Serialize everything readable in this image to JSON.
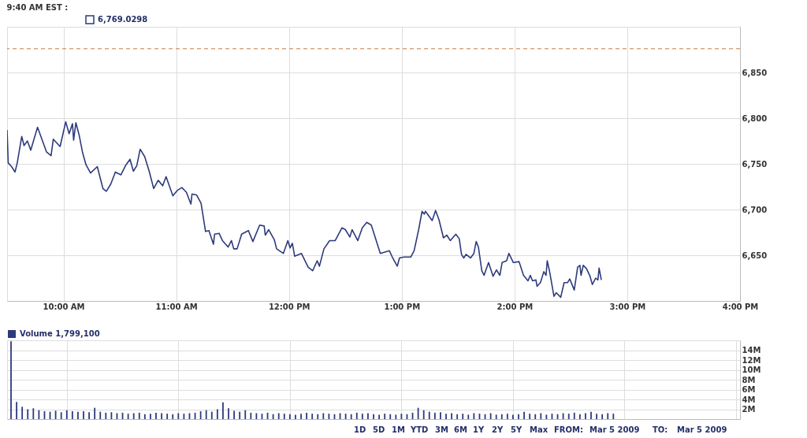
{
  "chart_data": [
    {
      "type": "line",
      "title": "9:40 AM EST :",
      "legend": "top left",
      "grid": true,
      "line_style": "solid",
      "xlim": [
        9.5,
        16
      ],
      "ylim": [
        6600,
        6900
      ],
      "xticks": [
        {
          "value": 10,
          "label": "10:00 AM"
        },
        {
          "value": 11,
          "label": "11:00 AM"
        },
        {
          "value": 12,
          "label": "12:00 PM"
        },
        {
          "value": 13,
          "label": "1:00 PM"
        },
        {
          "value": 14,
          "label": "2:00 PM"
        },
        {
          "value": 15,
          "label": "3:00 PM"
        },
        {
          "value": 16,
          "label": "4:00 PM"
        }
      ],
      "yticks": [
        {
          "value": 6650,
          "label": "6,650"
        },
        {
          "value": 6700,
          "label": "6,700"
        },
        {
          "value": 6750,
          "label": "6,750"
        },
        {
          "value": 6800,
          "label": "6,800"
        },
        {
          "value": 6850,
          "label": "6,850"
        }
      ],
      "ref_lines": [
        {
          "axis": "y",
          "value": 6876,
          "color": "#c8773e",
          "line_style": "dashed"
        }
      ],
      "series": [
        {
          "name": "6,769.0298",
          "color": "#2d3a7c",
          "x": [
            9.5,
            9.51,
            9.54,
            9.57,
            9.59,
            9.63,
            9.65,
            9.68,
            9.71,
            9.77,
            9.85,
            9.89,
            9.91,
            9.97,
            10.02,
            10.05,
            10.08,
            10.09,
            10.11,
            10.14,
            10.17,
            10.2,
            10.24,
            10.3,
            10.35,
            10.38,
            10.42,
            10.46,
            10.51,
            10.55,
            10.59,
            10.62,
            10.65,
            10.68,
            10.72,
            10.76,
            10.8,
            10.84,
            10.88,
            10.91,
            10.97,
            11.01,
            11.05,
            11.09,
            11.13,
            11.14,
            11.18,
            11.22,
            11.26,
            11.29,
            11.33,
            11.34,
            11.38,
            11.41,
            11.46,
            11.49,
            11.51,
            11.54,
            11.58,
            11.64,
            11.68,
            11.74,
            11.78,
            11.79,
            11.82,
            11.87,
            11.89,
            11.95,
            11.99,
            12.01,
            12.03,
            12.05,
            12.11,
            12.17,
            12.21,
            12.25,
            12.27,
            12.31,
            12.36,
            12.41,
            12.47,
            12.5,
            12.54,
            12.56,
            12.61,
            12.65,
            12.69,
            12.73,
            12.81,
            12.89,
            12.92,
            12.96,
            12.98,
            13.02,
            13.08,
            13.11,
            13.15,
            13.18,
            13.2,
            13.21,
            13.27,
            13.3,
            13.33,
            13.37,
            13.4,
            13.43,
            13.48,
            13.51,
            13.53,
            13.55,
            13.57,
            13.61,
            13.64,
            13.66,
            13.68,
            13.71,
            13.73,
            13.77,
            13.81,
            13.84,
            13.87,
            13.89,
            13.93,
            13.95,
            13.99,
            14.04,
            14.08,
            14.12,
            14.14,
            14.16,
            14.19,
            14.2,
            14.23,
            14.26,
            14.28,
            14.29,
            14.31,
            14.35,
            14.37,
            14.41,
            14.44,
            14.47,
            14.49,
            14.53,
            14.56,
            14.58,
            14.59,
            14.61,
            14.64,
            14.67,
            14.69,
            14.72,
            14.74,
            14.75,
            14.77
          ],
          "values": [
            6787,
            6751,
            6747,
            6741,
            6751,
            6780,
            6770,
            6775,
            6765,
            6790,
            6763,
            6759,
            6777,
            6769,
            6796,
            6783,
            6794,
            6776,
            6795,
            6781,
            6762,
            6749,
            6740,
            6747,
            6723,
            6720,
            6728,
            6741,
            6738,
            6748,
            6755,
            6742,
            6748,
            6766,
            6758,
            6742,
            6723,
            6732,
            6726,
            6736,
            6715,
            6721,
            6724,
            6719,
            6706,
            6717,
            6716,
            6707,
            6676,
            6677,
            6662,
            6673,
            6674,
            6666,
            6659,
            6666,
            6657,
            6657,
            6673,
            6677,
            6665,
            6683,
            6682,
            6672,
            6678,
            6667,
            6657,
            6652,
            6666,
            6658,
            6663,
            6649,
            6652,
            6637,
            6633,
            6644,
            6638,
            6657,
            6666,
            6666,
            6680,
            6678,
            6670,
            6678,
            6666,
            6680,
            6686,
            6683,
            6652,
            6655,
            6647,
            6638,
            6647,
            6648,
            6648,
            6655,
            6678,
            6698,
            6695,
            6698,
            6688,
            6699,
            6689,
            6669,
            6672,
            6666,
            6673,
            6668,
            6651,
            6647,
            6651,
            6647,
            6652,
            6665,
            6659,
            6633,
            6628,
            6642,
            6627,
            6634,
            6628,
            6642,
            6644,
            6652,
            6642,
            6643,
            6628,
            6622,
            6628,
            6622,
            6623,
            6616,
            6620,
            6632,
            6628,
            6644,
            6633,
            6605,
            6609,
            6604,
            6620,
            6620,
            6624,
            6612,
            6637,
            6639,
            6628,
            6639,
            6635,
            6627,
            6618,
            6625,
            6623,
            6636,
            6623
          ]
        }
      ]
    },
    {
      "type": "bar",
      "legend": "top left",
      "grid": true,
      "tick_labels": "y",
      "xlim": [
        9.5,
        16
      ],
      "ylim": [
        0,
        16000000
      ],
      "xticks": [
        {
          "value": 10,
          "label": null
        },
        {
          "value": 11,
          "label": null
        },
        {
          "value": 12,
          "label": null
        },
        {
          "value": 13,
          "label": null
        },
        {
          "value": 14,
          "label": null
        },
        {
          "value": 15,
          "label": null
        },
        {
          "value": 16,
          "label": null
        }
      ],
      "yticks": [
        {
          "value": 2000000,
          "label": "2M"
        },
        {
          "value": 4000000,
          "label": "4M"
        },
        {
          "value": 6000000,
          "label": "6M"
        },
        {
          "value": 8000000,
          "label": "8M"
        },
        {
          "value": 10000000,
          "label": "10M"
        },
        {
          "value": 12000000,
          "label": "12M"
        },
        {
          "value": 14000000,
          "label": "14M"
        }
      ],
      "annotations": [
        "1D",
        "5D",
        "1M",
        "YTD",
        "3M",
        "6M",
        "1Y",
        "2Y",
        "5Y",
        "Max",
        "FROM:",
        "Mar 5 2009",
        "TO:",
        "Mar 5 2009"
      ],
      "series": [
        {
          "name": "Volume 1,799,100",
          "color": "#2d3a7c",
          "x": [
            9.5,
            9.55,
            9.6,
            9.65,
            9.7,
            9.75,
            9.8,
            9.85,
            9.9,
            9.95,
            10.0,
            10.05,
            10.1,
            10.15,
            10.2,
            10.25,
            10.3,
            10.35,
            10.4,
            10.45,
            10.5,
            10.55,
            10.6,
            10.65,
            10.7,
            10.75,
            10.8,
            10.85,
            10.9,
            10.95,
            11.0,
            11.05,
            11.1,
            11.15,
            11.2,
            11.25,
            11.3,
            11.35,
            11.4,
            11.45,
            11.5,
            11.55,
            11.6,
            11.65,
            11.7,
            11.75,
            11.8,
            11.85,
            11.9,
            11.95,
            12.0,
            12.05,
            12.1,
            12.15,
            12.2,
            12.25,
            12.3,
            12.35,
            12.4,
            12.45,
            12.5,
            12.55,
            12.6,
            12.65,
            12.7,
            12.75,
            12.8,
            12.85,
            12.9,
            12.95,
            13.0,
            13.05,
            13.1,
            13.15,
            13.2,
            13.25,
            13.3,
            13.35,
            13.4,
            13.45,
            13.5,
            13.55,
            13.6,
            13.65,
            13.7,
            13.75,
            13.8,
            13.85,
            13.9,
            13.95,
            14.0,
            14.05,
            14.1,
            14.15,
            14.2,
            14.25,
            14.3,
            14.35,
            14.4,
            14.45,
            14.5,
            14.55,
            14.6,
            14.65,
            14.7,
            14.75,
            14.8,
            14.85,
            14.9
          ],
          "values": [
            15800000,
            3500000,
            2500000,
            2000000,
            2200000,
            1800000,
            1600000,
            1500000,
            1700000,
            1400000,
            1800000,
            1600000,
            1500000,
            1600000,
            1400000,
            2300000,
            1500000,
            1300000,
            1400000,
            1200000,
            1300000,
            1100000,
            1200000,
            1300000,
            1000000,
            1100000,
            1300000,
            1200000,
            1100000,
            1000000,
            1200000,
            1100000,
            1200000,
            1300000,
            1600000,
            1800000,
            1500000,
            2000000,
            3400000,
            2200000,
            1700000,
            1500000,
            1800000,
            1300000,
            1200000,
            1100000,
            1300000,
            1000000,
            1200000,
            1100000,
            1000000,
            900000,
            1100000,
            1300000,
            1100000,
            1000000,
            1200000,
            1100000,
            1000000,
            1200000,
            1100000,
            1000000,
            1300000,
            1100000,
            1200000,
            1000000,
            900000,
            1100000,
            1000000,
            900000,
            1100000,
            1000000,
            1300000,
            2300000,
            1800000,
            1500000,
            1300000,
            1400000,
            1100000,
            1200000,
            1000000,
            1100000,
            900000,
            1200000,
            1100000,
            1000000,
            1200000,
            900000,
            1000000,
            1100000,
            900000,
            1000000,
            1500000,
            1100000,
            1000000,
            1200000,
            900000,
            1100000,
            1000000,
            1200000,
            1100000,
            1300000,
            1000000,
            1200000,
            1500000,
            1100000,
            1000000,
            1200000,
            1100000
          ]
        }
      ]
    }
  ]
}
